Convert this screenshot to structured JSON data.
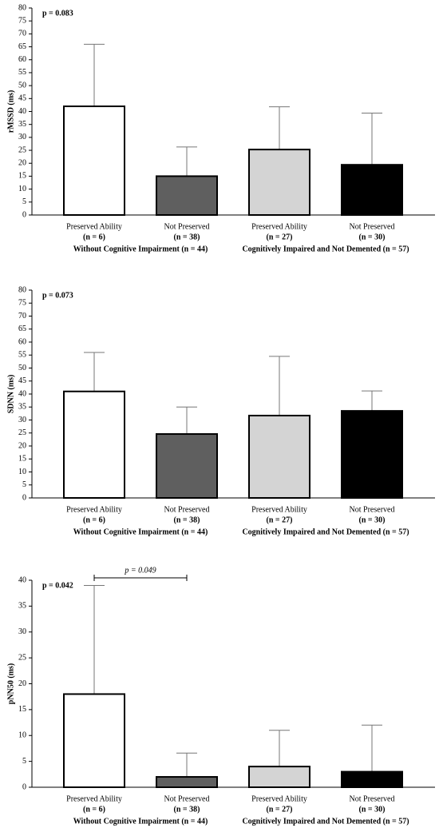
{
  "chart_data": [
    {
      "type": "bar",
      "annotation": "p = 0.083",
      "y_label": "rMSSD (ms)",
      "categories": [
        "Preserved Ability",
        "Not Preserved",
        "Preserved Ability",
        "Not Preserved"
      ],
      "category_sublabels": [
        "(n = 6)",
        "(n = 38)",
        "(n = 27)",
        "(n = 30)"
      ],
      "groups": [
        "Without Cognitive Impairment (n = 44)",
        "Cognitively Impaired and Not Demented (n = 57)"
      ],
      "values": [
        42,
        15,
        25.3,
        19.4
      ],
      "errors": [
        24,
        11.3,
        16.5,
        20
      ],
      "colors": [
        "#ffffff",
        "#5f5f5f",
        "#d4d4d4",
        "#000000"
      ],
      "ylim": [
        0,
        80
      ],
      "yticks": [
        0,
        5,
        10,
        15,
        20,
        25,
        30,
        35,
        40,
        45,
        50,
        55,
        60,
        65,
        70,
        75,
        80
      ]
    },
    {
      "type": "bar",
      "annotation": "p = 0.073",
      "y_label": "SDNN (ms)",
      "categories": [
        "Preserved Ability",
        "Not Preserved",
        "Preserved Ability",
        "Not Preserved"
      ],
      "category_sublabels": [
        "(n = 6)",
        "(n = 38)",
        "(n = 27)",
        "(n = 30)"
      ],
      "groups": [
        "Without Cognitive Impairment (n = 44)",
        "Cognitively Impaired and Not Demented (n = 57)"
      ],
      "values": [
        41,
        24.6,
        31.7,
        33.5
      ],
      "errors": [
        15,
        10.4,
        22.8,
        7.7
      ],
      "colors": [
        "#ffffff",
        "#5f5f5f",
        "#d4d4d4",
        "#000000"
      ],
      "ylim": [
        0,
        80
      ],
      "yticks": [
        0,
        5,
        10,
        15,
        20,
        25,
        30,
        35,
        40,
        45,
        50,
        55,
        60,
        65,
        70,
        75,
        80
      ]
    },
    {
      "type": "bar",
      "annotation": "p = 0.042",
      "y_label": "pNN50 (ms)",
      "comparison": {
        "label": "p = 0.049",
        "from": 0,
        "to": 1
      },
      "categories": [
        "Preserved Ability",
        "Not Preserved",
        "Preserved Ability",
        "Not Preserved"
      ],
      "category_sublabels": [
        "(n = 6)",
        "(n = 38)",
        "(n = 27)",
        "(n = 30)"
      ],
      "groups": [
        "Without Cognitive Impairment (n = 44)",
        "Cognitively Impaired and Not Demented (n = 57)"
      ],
      "values": [
        18,
        2,
        4,
        3
      ],
      "errors": [
        21,
        4.6,
        7,
        9
      ],
      "colors": [
        "#ffffff",
        "#5f5f5f",
        "#d4d4d4",
        "#000000"
      ],
      "ylim": [
        0,
        40
      ],
      "yticks": [
        0,
        5,
        10,
        15,
        20,
        25,
        30,
        35,
        40
      ]
    }
  ]
}
